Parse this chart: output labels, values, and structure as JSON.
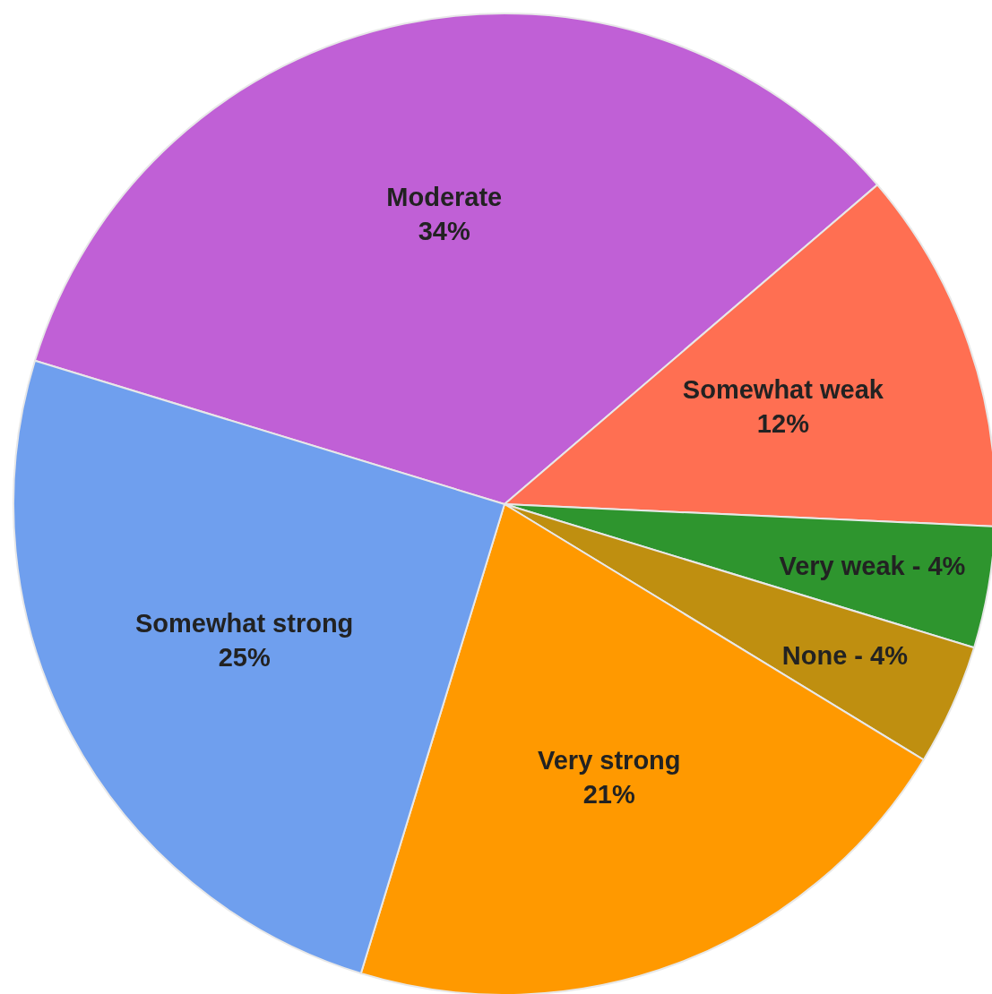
{
  "chart_data": {
    "type": "pie",
    "categories": [
      "Moderate",
      "Somewhat weak",
      "Very weak",
      "None",
      "Very strong",
      "Somewhat strong"
    ],
    "values": [
      34,
      12,
      4,
      4,
      21,
      25
    ],
    "value_labels": [
      "34%",
      "12%",
      "4%",
      "4%",
      "21%",
      "25%"
    ],
    "colors": [
      "#c060d6",
      "#ff6f52",
      "#2e952e",
      "#bf8f10",
      "#ff9900",
      "#6f9fee"
    ]
  }
}
